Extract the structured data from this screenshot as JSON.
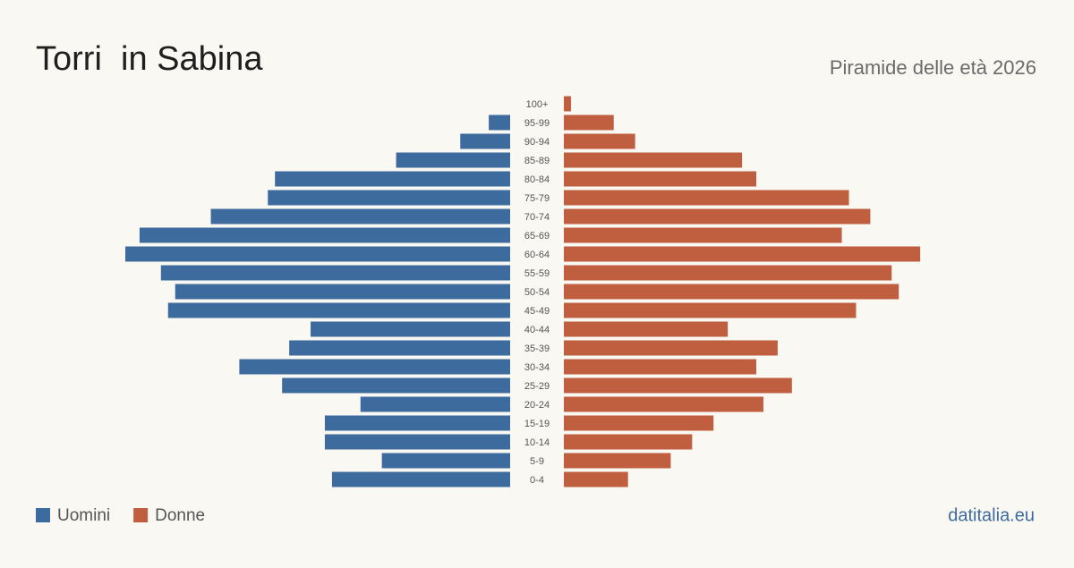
{
  "chart_data": {
    "type": "pyramid",
    "title": "Torri  in Sabina",
    "subtitle": "Piramide delle età 2026",
    "source": "datitalia.eu",
    "categories": [
      "100+",
      "95-99",
      "90-94",
      "85-89",
      "80-84",
      "75-79",
      "70-74",
      "65-69",
      "60-64",
      "55-59",
      "50-54",
      "45-49",
      "40-44",
      "35-39",
      "30-34",
      "25-29",
      "20-24",
      "15-19",
      "10-14",
      "5-9",
      "0-4"
    ],
    "series": [
      {
        "name": "Uomini",
        "color": "#3d6b9e",
        "values": [
          0,
          3,
          7,
          16,
          33,
          34,
          42,
          52,
          54,
          49,
          47,
          48,
          28,
          31,
          38,
          32,
          21,
          26,
          26,
          18,
          25
        ]
      },
      {
        "name": "Donne",
        "color": "#bf5f3f",
        "values": [
          1,
          7,
          10,
          25,
          27,
          40,
          43,
          39,
          50,
          46,
          47,
          41,
          23,
          30,
          27,
          32,
          28,
          21,
          18,
          15,
          9
        ]
      }
    ]
  }
}
